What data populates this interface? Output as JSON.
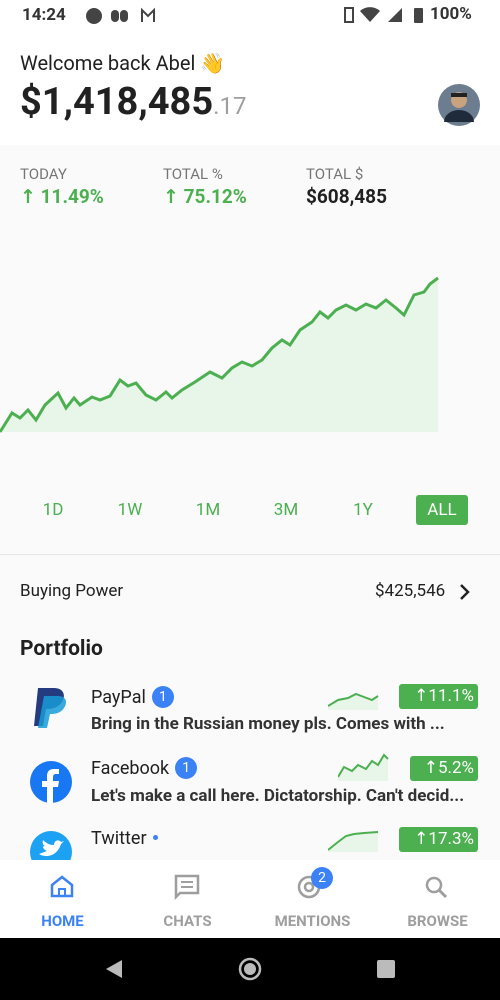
{
  "status_bar": {
    "time": "14:24",
    "battery": "100%"
  },
  "header": {
    "greeting": "Welcome back Abel 👋",
    "balance": "$1,418,485",
    "cents": ".17"
  },
  "stats": [
    {
      "label": "TODAY",
      "value": "11.49%"
    },
    {
      "label": "TOTAL %",
      "value": "75.12%"
    },
    {
      "label": "TOTAL $",
      "value": "$608,485"
    }
  ],
  "ranges": [
    "1D",
    "1W",
    "1M",
    "3M",
    "1Y",
    "ALL"
  ],
  "selected_range": 5,
  "buying_power": {
    "label": "Buying Power",
    "value": "$425,546"
  },
  "portfolio": {
    "title": "Portfolio",
    "items": [
      {
        "name": "PayPal",
        "badge": 1,
        "change": "11.1%",
        "message": "Bring in the Russian money pls. Comes with ..."
      },
      {
        "name": "Facebook",
        "badge": 1,
        "change": "5.2%",
        "message": "Let's make a call here. Dictatorship. Can't decid..."
      },
      {
        "name": "Twitter",
        "change": "17.3%"
      }
    ]
  },
  "nav": {
    "items": [
      "HOME",
      "CHATS",
      "MENTIONS",
      "BROWSE"
    ],
    "mentions_badge": 2
  }
}
